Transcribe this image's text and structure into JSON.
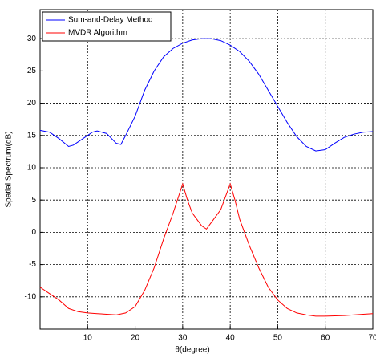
{
  "chart_data": {
    "type": "line",
    "xlabel": "θ(degree)",
    "ylabel": "Spatial Spectrum(dB)",
    "xlim": [
      0,
      70
    ],
    "ylim": [
      -15,
      34.5
    ],
    "xticks": [
      10,
      20,
      30,
      40,
      50,
      60,
      70
    ],
    "yticks": [
      -10,
      -5,
      0,
      5,
      10,
      15,
      20,
      25,
      30
    ],
    "grid": true,
    "legend": "upper left",
    "series": [
      {
        "name": "Sum-and-Delay Method",
        "color": "#0000ff",
        "x": [
          0,
          2,
          4,
          6,
          7,
          9,
          11,
          12,
          14,
          16,
          17,
          18,
          20,
          22,
          24,
          26,
          28,
          30,
          32,
          34,
          36,
          38,
          40,
          42,
          44,
          46,
          48,
          50,
          52,
          54,
          56,
          58,
          60,
          62,
          64,
          66,
          68,
          70
        ],
        "values": [
          15.8,
          15.5,
          14.5,
          13.3,
          13.5,
          14.5,
          15.5,
          15.7,
          15.3,
          13.8,
          13.6,
          15,
          18,
          22,
          25,
          27.2,
          28.5,
          29.3,
          29.8,
          30,
          30,
          29.7,
          29,
          28,
          26.5,
          24.5,
          22,
          19.5,
          17,
          14.8,
          13.3,
          12.6,
          12.8,
          13.8,
          14.7,
          15.2,
          15.5,
          15.6
        ]
      },
      {
        "name": "MVDR Algorithm",
        "color": "#ff0000",
        "x": [
          0,
          2,
          4,
          6,
          8,
          10,
          12,
          14,
          16,
          18,
          20,
          22,
          24,
          26,
          28,
          30,
          31,
          32,
          34,
          35,
          36,
          38,
          40,
          41,
          42,
          44,
          46,
          48,
          50,
          52,
          54,
          56,
          58,
          60,
          64,
          68,
          70
        ],
        "values": [
          -8.5,
          -9.5,
          -10.5,
          -11.8,
          -12.3,
          -12.5,
          -12.6,
          -12.7,
          -12.8,
          -12.5,
          -11.5,
          -9,
          -5.5,
          -1,
          3,
          7.5,
          5,
          3,
          1,
          0.5,
          1.5,
          3.5,
          7.5,
          5,
          2,
          -2,
          -5.5,
          -8.5,
          -10.5,
          -11.8,
          -12.5,
          -12.8,
          -13,
          -13,
          -12.9,
          -12.7,
          -12.6
        ]
      }
    ]
  }
}
